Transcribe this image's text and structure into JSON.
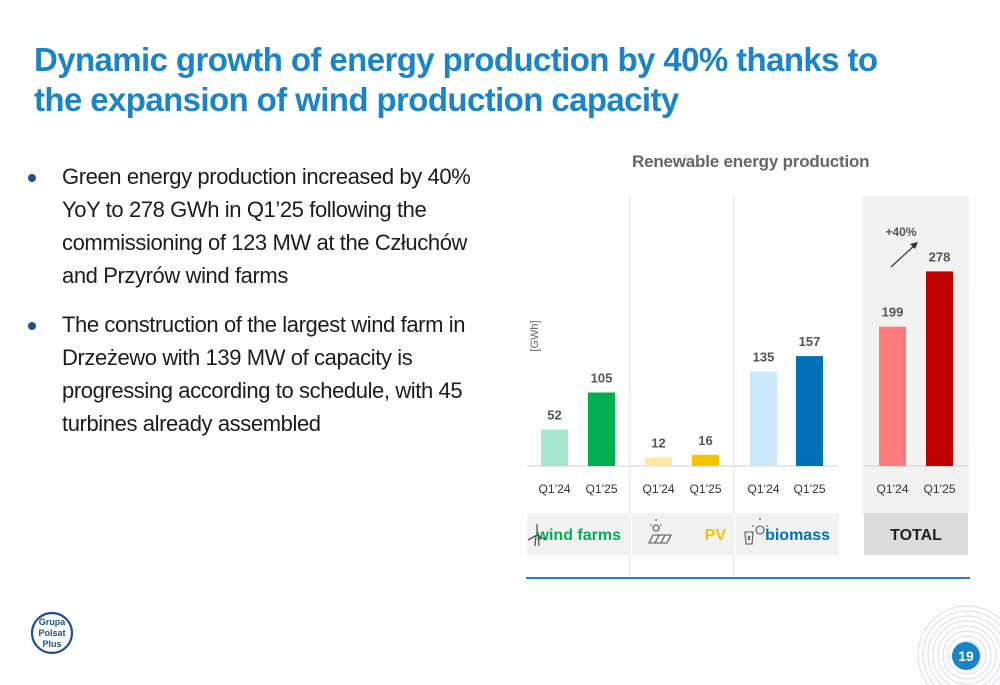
{
  "slide": {
    "title_line1": "Dynamic growth of energy production by 40% thanks to",
    "title_line2": "the expansion of wind production capacity",
    "bullets": [
      "Green energy production increased by 40% YoY to 278 GWh in Q1’25 following the commissioning of 123 MW at the Człuchów and Przyrów wind farms",
      "The construction of the largest wind farm in Drzeżewo with 139 MW of capacity is progressing according to schedule, with 45 turbines already assembled"
    ],
    "page_number": "19",
    "logo_lines": [
      "Grupa",
      "Polsat",
      "Plus"
    ]
  },
  "chart_data": {
    "type": "bar",
    "title": "Renewable energy production",
    "ylabel": "[GWh]",
    "ylim": [
      0,
      300
    ],
    "categories": [
      "Q1'24",
      "Q1'25"
    ],
    "groups": [
      {
        "name": "wind farms",
        "icon": "wind-turbine-icon",
        "categories": [
          "Q1’24",
          "Q1’25"
        ],
        "values": [
          52,
          105
        ],
        "colors": [
          "#a8e6cb",
          "#00b050"
        ],
        "label_color": "#00b050"
      },
      {
        "name": "PV",
        "icon": "solar-panel-icon",
        "categories": [
          "Q1’24",
          "Q1’25"
        ],
        "values": [
          12,
          16
        ],
        "colors": [
          "#fde8a0",
          "#f5c200"
        ],
        "label_color": "#f5c200"
      },
      {
        "name": "biomass",
        "icon": "biomass-icon",
        "categories": [
          "Q1’24",
          "Q1’25"
        ],
        "values": [
          135,
          157
        ],
        "colors": [
          "#cce9fb",
          "#0070b8"
        ],
        "label_color": "#0070b8"
      },
      {
        "name": "TOTAL",
        "icon": "",
        "categories": [
          "Q1’24",
          "Q1’25"
        ],
        "values": [
          199,
          278
        ],
        "colors": [
          "#ff7b7b",
          "#c00000"
        ],
        "label_color": "#222222"
      }
    ],
    "annotation": "+40%"
  },
  "colors": {
    "accent": "#1a84c6",
    "divider": "#1a84c6",
    "total_bg": "#dcdcdc",
    "total_panel": "#f2f2f2"
  }
}
